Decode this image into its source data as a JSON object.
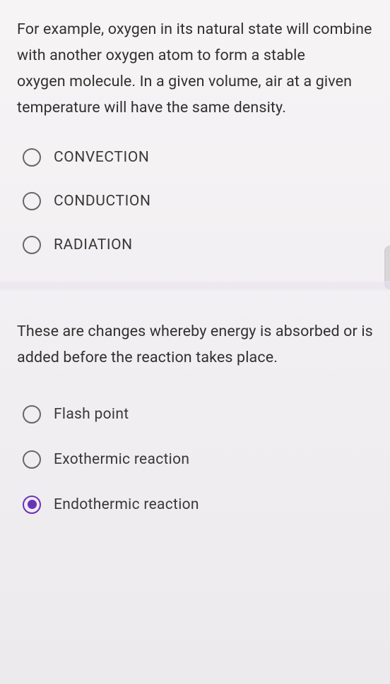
{
  "question1": {
    "text": "For example, oxygen in its natural state will combine with another oxygen atom to form a stable\noxygen molecule. In a given volume, air at a given temperature will have the same density.",
    "options": [
      {
        "label": "CONVECTION",
        "selected": false
      },
      {
        "label": "CONDUCTION",
        "selected": false
      },
      {
        "label": "RADIATION",
        "selected": false
      }
    ]
  },
  "question2": {
    "text": "These are changes whereby energy is absorbed or is added before the reaction takes place.",
    "options": [
      {
        "label": "Flash point",
        "selected": false
      },
      {
        "label": "Exothermic reaction",
        "selected": false
      },
      {
        "label": "Endothermic reaction",
        "selected": true
      }
    ]
  },
  "colors": {
    "text": "#32302f",
    "radio_border": "#6a6667",
    "accent": "#6a33b8",
    "background": "#f5f3f4",
    "divider": "#e6dfee"
  }
}
